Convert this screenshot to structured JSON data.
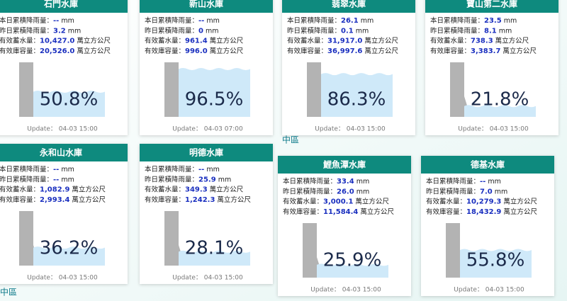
{
  "fields": [
    {
      "label": "本日累積降雨量：",
      "unit": "mm"
    },
    {
      "label": "昨日累積降雨量：",
      "unit": "mm"
    },
    {
      "label": "有效蓄水量：",
      "unit": "萬立方公尺"
    },
    {
      "label": "有效庫容量：",
      "unit": "萬立方公尺"
    }
  ],
  "cards": [
    {
      "name": "石門水庫",
      "values": [
        "--",
        "3.2",
        "10,427.0",
        "20,526.0"
      ],
      "percent": "50.8%",
      "update": "Update： 04-03 15:00"
    },
    {
      "name": "新山水庫",
      "values": [
        "--",
        "0",
        "961.4",
        "996.0"
      ],
      "percent": "96.5%",
      "update": "Update： 04-03 07:00"
    },
    {
      "name": "翡翠水庫",
      "values": [
        "26.1",
        "0.1",
        "31,917.0",
        "36,997.6"
      ],
      "percent": "86.3%",
      "update": "Update： 04-03 15:00"
    },
    {
      "name": "寶山第二水庫",
      "values": [
        "23.5",
        "8.1",
        "738.3",
        "3,383.7"
      ],
      "percent": "21.8%",
      "update": "Update： 04-03 15:00"
    },
    {
      "name": "永和山水庫",
      "values": [
        "--",
        "--",
        "1,082.9",
        "2,993.4"
      ],
      "percent": "36.2%",
      "update": "Update： 04-03 15:00"
    },
    {
      "name": "明德水庫",
      "values": [
        "--",
        "25.9",
        "349.3",
        "1,242.3"
      ],
      "percent": "28.1%",
      "update": "Update： 04-03 15:00"
    },
    {
      "name": "鯉魚潭水庫",
      "values": [
        "33.4",
        "26.0",
        "3,000.1",
        "11,584.4"
      ],
      "percent": "25.9%",
      "update": "Update： 04-03 15:00"
    },
    {
      "name": "德基水庫",
      "values": [
        "--",
        "7.0",
        "10,279.3",
        "18,432.9"
      ],
      "percent": "55.8%",
      "update": "Update： 04-03 15:00"
    }
  ],
  "regions": [
    "中區",
    "中區"
  ]
}
